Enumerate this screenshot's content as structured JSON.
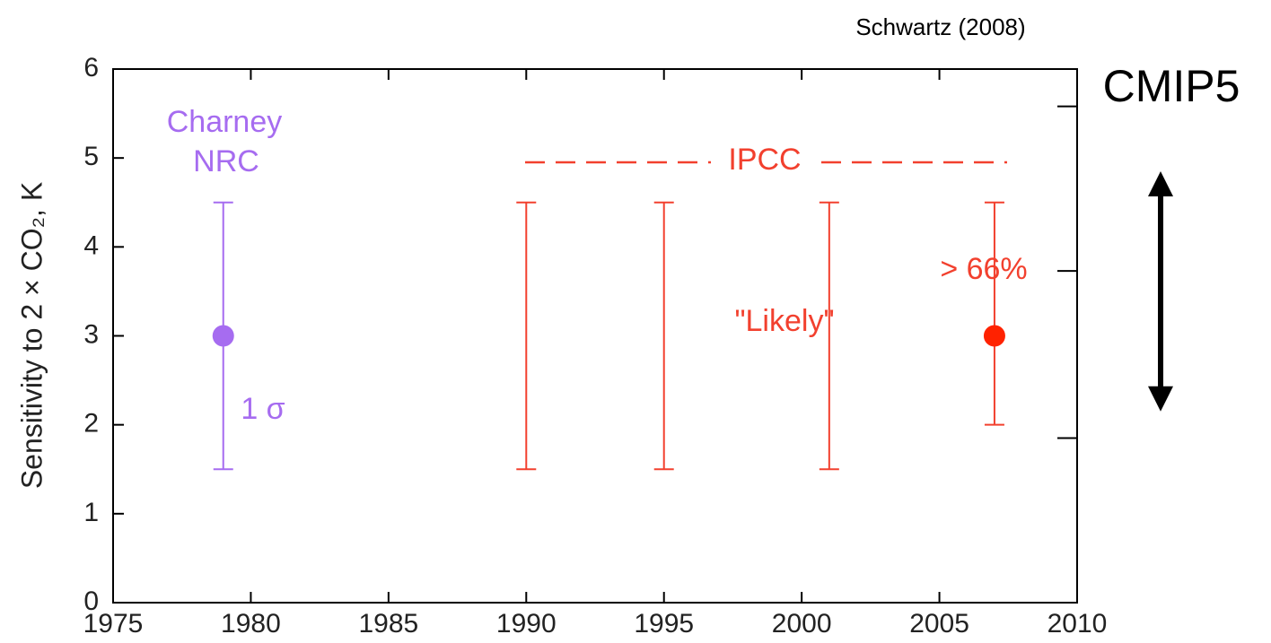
{
  "chart_data": {
    "type": "errorbar",
    "source": "Schwartz (2008)",
    "ylabel": "Sensitivity to 2 × CO₂, K",
    "xlim": [
      1975,
      2010
    ],
    "xticks": [
      1975,
      1980,
      1985,
      1990,
      1995,
      2000,
      2005,
      2010
    ],
    "ylim": [
      0,
      6
    ],
    "yticks": [
      0,
      1,
      2,
      3,
      4,
      5,
      6
    ],
    "right_ticks": [
      5.58,
      3.73,
      1.85
    ],
    "series": [
      {
        "color": "#a66cf0",
        "x": [
          1979
        ],
        "values": [
          3
        ],
        "low": [
          1.5
        ],
        "high": [
          4.5
        ]
      },
      {
        "color": "#f2402e",
        "x": [
          1990,
          1995,
          2001,
          2007
        ],
        "values": [
          null,
          null,
          null,
          3
        ],
        "low": [
          1.5,
          1.5,
          1.5,
          2
        ],
        "high": [
          4.5,
          4.5,
          4.5,
          4.5
        ]
      }
    ],
    "annotations": [
      "Charney",
      "NRC",
      "1 σ",
      "IPCC",
      "\"Likely\"",
      "> 66%"
    ],
    "cmip5": {
      "label": "CMIP5",
      "low": 2.15,
      "high": 4.85
    }
  }
}
